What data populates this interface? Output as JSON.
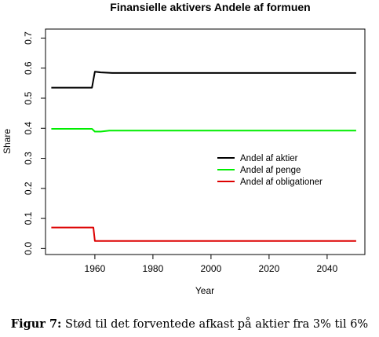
{
  "chart_data": {
    "type": "line",
    "title": "Finansielle aktivers Andele af formuen",
    "xlabel": "Year",
    "ylabel": "Share",
    "xlim": [
      1943,
      2053
    ],
    "ylim": [
      -0.02,
      0.73
    ],
    "xticks": [
      1960,
      1980,
      2000,
      2020,
      2040
    ],
    "yticks": [
      0.0,
      0.1,
      0.2,
      0.3,
      0.4,
      0.5,
      0.6,
      0.7
    ],
    "xtick_labels": [
      "1960",
      "1980",
      "2000",
      "2020",
      "2040"
    ],
    "ytick_labels": [
      "0.0",
      "0.1",
      "0.2",
      "0.3",
      "0.4",
      "0.5",
      "0.6",
      "0.7"
    ],
    "legend_position": "center-right",
    "series": [
      {
        "name": "Andel af aktier",
        "color": "#000000",
        "points": [
          [
            1945,
            0.535
          ],
          [
            1959,
            0.535
          ],
          [
            1960,
            0.588
          ],
          [
            1962,
            0.586
          ],
          [
            1966,
            0.584
          ],
          [
            2050,
            0.584
          ]
        ]
      },
      {
        "name": "Andel af penge",
        "color": "#00ee00",
        "points": [
          [
            1945,
            0.398
          ],
          [
            1959,
            0.398
          ],
          [
            1960,
            0.389
          ],
          [
            1962,
            0.389
          ],
          [
            1965,
            0.392
          ],
          [
            2050,
            0.392
          ]
        ]
      },
      {
        "name": "Andel af obligationer",
        "color": "#dd0000",
        "points": [
          [
            1945,
            0.07
          ],
          [
            1959.5,
            0.07
          ],
          [
            1960,
            0.025
          ],
          [
            2050,
            0.025
          ]
        ]
      }
    ]
  },
  "caption": {
    "label": "Figur 7:",
    "text": "Stød til det forventede afkast på aktier fra 3% til 6%"
  }
}
